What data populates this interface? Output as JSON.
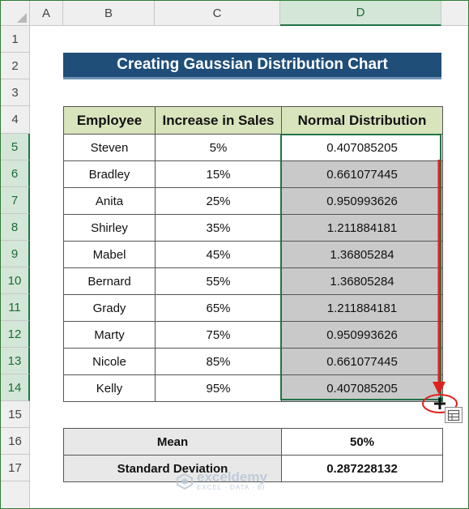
{
  "columns": [
    "A",
    "B",
    "C",
    "D"
  ],
  "rows": [
    "1",
    "2",
    "3",
    "4",
    "5",
    "6",
    "7",
    "8",
    "9",
    "10",
    "11",
    "12",
    "13",
    "14",
    "15",
    "16",
    "17"
  ],
  "title": "Creating Gaussian Distribution Chart",
  "table": {
    "headers": [
      "Employee",
      "Increase in Sales",
      "Normal Distribution"
    ],
    "rows": [
      {
        "employee": "Steven",
        "increase": "5%",
        "normal": "0.407085205"
      },
      {
        "employee": "Bradley",
        "increase": "15%",
        "normal": "0.661077445"
      },
      {
        "employee": "Anita",
        "increase": "25%",
        "normal": "0.950993626"
      },
      {
        "employee": "Shirley",
        "increase": "35%",
        "normal": "1.211884181"
      },
      {
        "employee": "Mabel",
        "increase": "45%",
        "normal": "1.36805284"
      },
      {
        "employee": "Bernard",
        "increase": "55%",
        "normal": "1.36805284"
      },
      {
        "employee": "Grady",
        "increase": "65%",
        "normal": "1.211884181"
      },
      {
        "employee": "Marty",
        "increase": "75%",
        "normal": "0.950993626"
      },
      {
        "employee": "Nicole",
        "increase": "85%",
        "normal": "0.661077445"
      },
      {
        "employee": "Kelly",
        "increase": "95%",
        "normal": "0.407085205"
      }
    ]
  },
  "summary": {
    "mean_label": "Mean",
    "mean_value": "50%",
    "sd_label": "Standard Deviation",
    "sd_value": "0.287228132"
  },
  "watermark": {
    "name": "exceldemy",
    "tagline": "EXCEL · DATA · BI"
  },
  "colors": {
    "title_bg": "#1f4e79",
    "header_bg": "#d8e4bc",
    "selection": "#217346",
    "fill_gray": "#c9c9c9",
    "arrow": "#e02020"
  },
  "icons": [
    "fill-handle-crosshair-icon",
    "quick-analysis-icon",
    "exceldemy-logo-icon"
  ]
}
